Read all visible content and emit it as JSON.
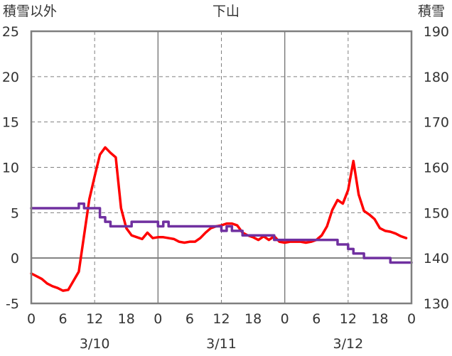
{
  "chart_data": {
    "type": "line",
    "title": "下山",
    "ylabel_left": "積雪以外",
    "ylabel_right": "積雪",
    "ylim_left": [
      -5,
      25
    ],
    "ylim_right": [
      130,
      190
    ],
    "yticks_left": [
      "25",
      "20",
      "15",
      "10",
      "5",
      "0",
      "-5"
    ],
    "yticks_right": [
      "190",
      "180",
      "170",
      "160",
      "150",
      "140",
      "130"
    ],
    "xlim": [
      0,
      72
    ],
    "xticks": [
      "0",
      "6",
      "12",
      "18",
      "0",
      "6",
      "12",
      "18",
      "0",
      "6",
      "12",
      "18",
      "0"
    ],
    "date_labels": [
      "3/10",
      "3/11",
      "3/12"
    ],
    "grid": true,
    "series": [
      {
        "axis": "left",
        "color": "#ff0000",
        "x": [
          0,
          1,
          2,
          3,
          4,
          5,
          6,
          7,
          8,
          9,
          10,
          11,
          12,
          13,
          14,
          15,
          16,
          17,
          18,
          19,
          20,
          21,
          22,
          23,
          24,
          25,
          26,
          27,
          28,
          29,
          30,
          31,
          32,
          33,
          34,
          35,
          36,
          37,
          38,
          39,
          40,
          41,
          42,
          43,
          44,
          45,
          46,
          47,
          48,
          49,
          50,
          51,
          52,
          53,
          54,
          55,
          56,
          57,
          58,
          59,
          60,
          61,
          62,
          63,
          64,
          65,
          66,
          67,
          68,
          69,
          70,
          71
        ],
        "values": [
          -1.7,
          -2.0,
          -2.3,
          -2.8,
          -3.1,
          -3.3,
          -3.6,
          -3.5,
          -2.5,
          -1.5,
          2.5,
          6.5,
          9.0,
          11.4,
          12.2,
          11.6,
          11.1,
          5.5,
          3.3,
          2.5,
          2.3,
          2.1,
          2.8,
          2.2,
          2.3,
          2.3,
          2.2,
          2.1,
          1.8,
          1.7,
          1.8,
          1.8,
          2.2,
          2.8,
          3.3,
          3.5,
          3.6,
          3.8,
          3.8,
          3.6,
          2.8,
          2.5,
          2.3,
          2.0,
          2.4,
          2.0,
          2.4,
          1.8,
          1.7,
          1.8,
          1.8,
          1.8,
          1.7,
          1.8,
          2.0,
          2.5,
          3.5,
          5.3,
          6.4,
          6.0,
          7.5,
          10.7,
          7.0,
          5.2,
          4.8,
          4.3,
          3.3,
          3.0,
          2.9,
          2.7,
          2.4,
          2.2
        ]
      },
      {
        "axis": "right",
        "color": "#7030a0",
        "x": [
          0,
          1,
          2,
          3,
          4,
          5,
          6,
          7,
          8,
          9,
          10,
          11,
          12,
          13,
          14,
          15,
          16,
          17,
          18,
          19,
          20,
          21,
          22,
          23,
          24,
          25,
          26,
          27,
          28,
          29,
          30,
          31,
          32,
          33,
          34,
          35,
          36,
          37,
          38,
          39,
          40,
          41,
          42,
          43,
          44,
          45,
          46,
          47,
          48,
          49,
          50,
          51,
          52,
          53,
          54,
          55,
          56,
          57,
          58,
          59,
          60,
          61,
          62,
          63,
          64,
          65,
          66,
          67,
          68,
          69,
          70,
          71
        ],
        "values": [
          151,
          151,
          151,
          151,
          151,
          151,
          151,
          151,
          151,
          152,
          151,
          151,
          151,
          149,
          148,
          147,
          147,
          147,
          147,
          148,
          148,
          148,
          148,
          148,
          147,
          148,
          147,
          147,
          147,
          147,
          147,
          147,
          147,
          147,
          147,
          147,
          146,
          147,
          146,
          146,
          145,
          145,
          145,
          145,
          145,
          145,
          144,
          144,
          144,
          144,
          144,
          144,
          144,
          144,
          144,
          144,
          144,
          144,
          143,
          143,
          142,
          141,
          141,
          140,
          140,
          140,
          140,
          140,
          139,
          139,
          139,
          139
        ]
      }
    ]
  }
}
